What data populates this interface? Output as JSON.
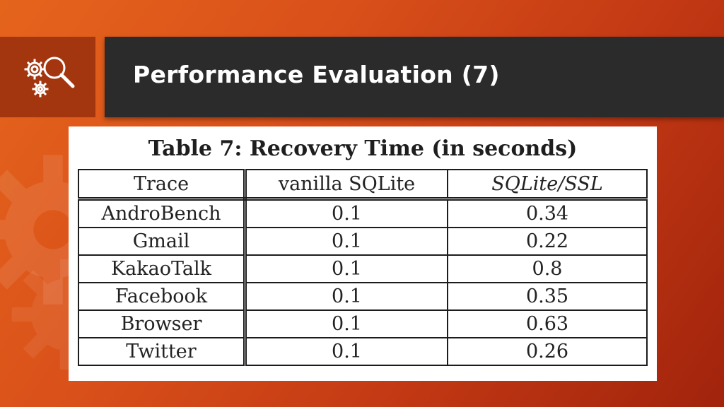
{
  "slide": {
    "title": "Performance Evaluation (7)",
    "icon": "gears-magnifier-icon"
  },
  "table": {
    "caption": "Table 7: Recovery Time (in seconds)",
    "headers": [
      "Trace",
      "vanilla SQLite",
      "SQLite/SSL"
    ],
    "rows": [
      [
        "AndroBench",
        "0.1",
        "0.34"
      ],
      [
        "Gmail",
        "0.1",
        "0.22"
      ],
      [
        "KakaoTalk",
        "0.1",
        "0.8"
      ],
      [
        "Facebook",
        "0.1",
        "0.35"
      ],
      [
        "Browser",
        "0.1",
        "0.63"
      ],
      [
        "Twitter",
        "0.1",
        "0.26"
      ]
    ]
  },
  "colors": {
    "background": "#d9501a",
    "title_bar": "#2b2b2b",
    "icon_box": "#a3360f"
  }
}
